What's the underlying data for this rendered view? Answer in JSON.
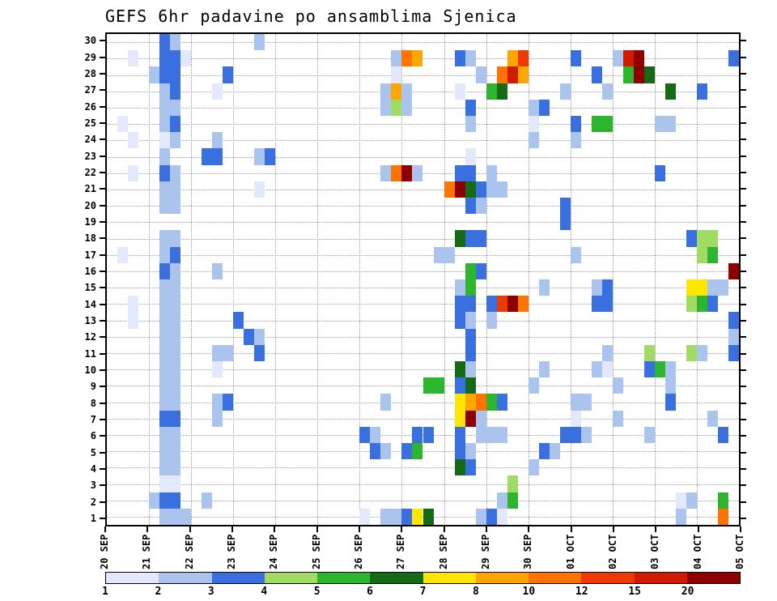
{
  "title": "GEFS 6hr padavine po ansamblima Sjenica",
  "chart_data": {
    "type": "heatmap",
    "title": "GEFS 6hr padavine po ansamblima Sjenica",
    "x_tick_labels": [
      "20 SEP",
      "21 SEP",
      "22 SEP",
      "23 SEP",
      "24 SEP",
      "25 SEP",
      "26 SEP",
      "27 SEP",
      "28 SEP",
      "29 SEP",
      "30 SEP",
      "01 OCT",
      "02 OCT",
      "03 OCT",
      "04 OCT",
      "05 OCT"
    ],
    "x_steps_per_day": 4,
    "n_cols": 60,
    "y_tick_labels": [
      "30",
      "29",
      "28",
      "27",
      "26",
      "25",
      "24",
      "23",
      "22",
      "21",
      "20",
      "19",
      "18",
      "17",
      "16",
      "15",
      "14",
      "13",
      "12",
      "11",
      "10",
      "9",
      "8",
      "7",
      "6",
      "5",
      "4",
      "3",
      "2",
      "1"
    ],
    "y_axis_meaning": "ensemble member",
    "grid": "dotted",
    "colorbar": {
      "labels": [
        "1",
        "2",
        "3",
        "4",
        "5",
        "6",
        "7",
        "8",
        "10",
        "12",
        "15",
        "20"
      ],
      "colors": [
        "#e3e8fa",
        "#aac4ee",
        "#3a6fe0",
        "#a0dc64",
        "#2db52d",
        "#156b15",
        "#ffe600",
        "#ffa500",
        "#ff7300",
        "#ee3900",
        "#d21a00",
        "#8e0000"
      ],
      "level_ranges": [
        "1-2",
        "2-3",
        "3-4",
        "4-5",
        "5-6",
        "6-7",
        "7-8",
        "8-10",
        "10-12",
        "12-15",
        "15-20",
        ">20"
      ]
    },
    "cells_format": "[column_6hr_step_from_20SEP, ensemble_member, color_level_1_to_12]",
    "cells": [
      [
        5,
        30,
        3
      ],
      [
        6,
        30,
        2
      ],
      [
        14,
        30,
        2
      ],
      [
        2,
        29,
        1
      ],
      [
        5,
        29,
        3
      ],
      [
        6,
        29,
        3
      ],
      [
        7,
        29,
        1
      ],
      [
        27,
        29,
        2
      ],
      [
        28,
        29,
        9
      ],
      [
        29,
        29,
        8
      ],
      [
        33,
        29,
        3
      ],
      [
        34,
        29,
        2
      ],
      [
        38,
        29,
        8
      ],
      [
        39,
        29,
        10
      ],
      [
        44,
        29,
        3
      ],
      [
        48,
        29,
        2
      ],
      [
        49,
        29,
        11
      ],
      [
        50,
        29,
        12
      ],
      [
        59,
        29,
        3
      ],
      [
        4,
        28,
        2
      ],
      [
        5,
        28,
        3
      ],
      [
        6,
        28,
        3
      ],
      [
        11,
        28,
        3
      ],
      [
        27,
        28,
        1
      ],
      [
        35,
        28,
        2
      ],
      [
        37,
        28,
        9
      ],
      [
        38,
        28,
        11
      ],
      [
        39,
        28,
        8
      ],
      [
        46,
        28,
        3
      ],
      [
        49,
        28,
        5
      ],
      [
        50,
        28,
        12
      ],
      [
        51,
        28,
        6
      ],
      [
        5,
        27,
        2
      ],
      [
        6,
        27,
        3
      ],
      [
        10,
        27,
        1
      ],
      [
        26,
        27,
        2
      ],
      [
        27,
        27,
        8
      ],
      [
        28,
        27,
        2
      ],
      [
        33,
        27,
        1
      ],
      [
        36,
        27,
        5
      ],
      [
        37,
        27,
        6
      ],
      [
        43,
        27,
        2
      ],
      [
        47,
        27,
        2
      ],
      [
        53,
        27,
        6
      ],
      [
        56,
        27,
        3
      ],
      [
        5,
        26,
        2
      ],
      [
        6,
        26,
        2
      ],
      [
        26,
        26,
        2
      ],
      [
        27,
        26,
        4
      ],
      [
        28,
        26,
        2
      ],
      [
        34,
        26,
        3
      ],
      [
        40,
        26,
        2
      ],
      [
        41,
        26,
        3
      ],
      [
        1,
        25,
        1
      ],
      [
        5,
        25,
        2
      ],
      [
        6,
        25,
        3
      ],
      [
        34,
        25,
        2
      ],
      [
        40,
        25,
        1
      ],
      [
        44,
        25,
        3
      ],
      [
        46,
        25,
        5
      ],
      [
        47,
        25,
        5
      ],
      [
        52,
        25,
        2
      ],
      [
        53,
        25,
        2
      ],
      [
        2,
        24,
        1
      ],
      [
        5,
        24,
        1
      ],
      [
        6,
        24,
        2
      ],
      [
        10,
        24,
        2
      ],
      [
        40,
        24,
        2
      ],
      [
        44,
        24,
        2
      ],
      [
        5,
        23,
        2
      ],
      [
        9,
        23,
        3
      ],
      [
        10,
        23,
        3
      ],
      [
        14,
        23,
        2
      ],
      [
        15,
        23,
        3
      ],
      [
        34,
        23,
        1
      ],
      [
        2,
        22,
        1
      ],
      [
        5,
        22,
        3
      ],
      [
        6,
        22,
        2
      ],
      [
        26,
        22,
        2
      ],
      [
        27,
        22,
        9
      ],
      [
        28,
        22,
        12
      ],
      [
        29,
        22,
        2
      ],
      [
        33,
        22,
        3
      ],
      [
        34,
        22,
        3
      ],
      [
        36,
        22,
        2
      ],
      [
        52,
        22,
        3
      ],
      [
        5,
        21,
        2
      ],
      [
        6,
        21,
        2
      ],
      [
        14,
        21,
        1
      ],
      [
        32,
        21,
        9
      ],
      [
        33,
        21,
        12
      ],
      [
        34,
        21,
        6
      ],
      [
        35,
        21,
        3
      ],
      [
        36,
        21,
        2
      ],
      [
        37,
        21,
        2
      ],
      [
        5,
        20,
        2
      ],
      [
        6,
        20,
        2
      ],
      [
        34,
        20,
        3
      ],
      [
        35,
        20,
        2
      ],
      [
        43,
        20,
        3
      ],
      [
        43,
        19,
        3
      ],
      [
        5,
        18,
        2
      ],
      [
        6,
        18,
        2
      ],
      [
        33,
        18,
        6
      ],
      [
        34,
        18,
        3
      ],
      [
        35,
        18,
        3
      ],
      [
        55,
        18,
        3
      ],
      [
        56,
        18,
        4
      ],
      [
        57,
        18,
        4
      ],
      [
        1,
        17,
        1
      ],
      [
        5,
        17,
        2
      ],
      [
        6,
        17,
        3
      ],
      [
        31,
        17,
        2
      ],
      [
        32,
        17,
        2
      ],
      [
        44,
        17,
        2
      ],
      [
        56,
        17,
        4
      ],
      [
        57,
        17,
        5
      ],
      [
        5,
        16,
        3
      ],
      [
        6,
        16,
        2
      ],
      [
        10,
        16,
        2
      ],
      [
        34,
        16,
        5
      ],
      [
        35,
        16,
        3
      ],
      [
        59,
        16,
        12
      ],
      [
        5,
        15,
        2
      ],
      [
        6,
        15,
        2
      ],
      [
        33,
        15,
        2
      ],
      [
        34,
        15,
        5
      ],
      [
        41,
        15,
        2
      ],
      [
        46,
        15,
        2
      ],
      [
        47,
        15,
        3
      ],
      [
        55,
        15,
        7
      ],
      [
        56,
        15,
        7
      ],
      [
        57,
        15,
        2
      ],
      [
        58,
        15,
        2
      ],
      [
        2,
        14,
        1
      ],
      [
        5,
        14,
        2
      ],
      [
        6,
        14,
        2
      ],
      [
        33,
        14,
        3
      ],
      [
        34,
        14,
        3
      ],
      [
        36,
        14,
        3
      ],
      [
        37,
        14,
        10
      ],
      [
        38,
        14,
        12
      ],
      [
        39,
        14,
        9
      ],
      [
        46,
        14,
        3
      ],
      [
        47,
        14,
        3
      ],
      [
        55,
        14,
        4
      ],
      [
        56,
        14,
        5
      ],
      [
        57,
        14,
        3
      ],
      [
        2,
        13,
        1
      ],
      [
        5,
        13,
        2
      ],
      [
        6,
        13,
        2
      ],
      [
        12,
        13,
        3
      ],
      [
        33,
        13,
        3
      ],
      [
        34,
        13,
        2
      ],
      [
        36,
        13,
        2
      ],
      [
        59,
        13,
        3
      ],
      [
        5,
        12,
        2
      ],
      [
        6,
        12,
        2
      ],
      [
        13,
        12,
        3
      ],
      [
        14,
        12,
        2
      ],
      [
        34,
        12,
        3
      ],
      [
        59,
        12,
        2
      ],
      [
        5,
        11,
        2
      ],
      [
        6,
        11,
        2
      ],
      [
        10,
        11,
        2
      ],
      [
        11,
        11,
        2
      ],
      [
        14,
        11,
        3
      ],
      [
        34,
        11,
        3
      ],
      [
        47,
        11,
        2
      ],
      [
        51,
        11,
        4
      ],
      [
        55,
        11,
        4
      ],
      [
        56,
        11,
        2
      ],
      [
        59,
        11,
        3
      ],
      [
        5,
        10,
        2
      ],
      [
        6,
        10,
        2
      ],
      [
        10,
        10,
        1
      ],
      [
        33,
        10,
        6
      ],
      [
        34,
        10,
        2
      ],
      [
        41,
        10,
        2
      ],
      [
        46,
        10,
        2
      ],
      [
        47,
        10,
        1
      ],
      [
        51,
        10,
        3
      ],
      [
        52,
        10,
        5
      ],
      [
        53,
        10,
        2
      ],
      [
        5,
        9,
        2
      ],
      [
        6,
        9,
        2
      ],
      [
        30,
        9,
        5
      ],
      [
        31,
        9,
        5
      ],
      [
        33,
        9,
        3
      ],
      [
        34,
        9,
        6
      ],
      [
        40,
        9,
        2
      ],
      [
        48,
        9,
        2
      ],
      [
        53,
        9,
        2
      ],
      [
        5,
        8,
        2
      ],
      [
        6,
        8,
        2
      ],
      [
        10,
        8,
        2
      ],
      [
        11,
        8,
        3
      ],
      [
        26,
        8,
        2
      ],
      [
        33,
        8,
        7
      ],
      [
        34,
        8,
        8
      ],
      [
        35,
        8,
        9
      ],
      [
        36,
        8,
        5
      ],
      [
        37,
        8,
        3
      ],
      [
        44,
        8,
        2
      ],
      [
        45,
        8,
        2
      ],
      [
        53,
        8,
        3
      ],
      [
        5,
        7,
        3
      ],
      [
        6,
        7,
        3
      ],
      [
        10,
        7,
        2
      ],
      [
        33,
        7,
        7
      ],
      [
        34,
        7,
        12
      ],
      [
        35,
        7,
        2
      ],
      [
        44,
        7,
        1
      ],
      [
        48,
        7,
        2
      ],
      [
        57,
        7,
        2
      ],
      [
        5,
        6,
        2
      ],
      [
        6,
        6,
        2
      ],
      [
        24,
        6,
        3
      ],
      [
        25,
        6,
        2
      ],
      [
        29,
        6,
        3
      ],
      [
        30,
        6,
        3
      ],
      [
        33,
        6,
        3
      ],
      [
        35,
        6,
        2
      ],
      [
        36,
        6,
        2
      ],
      [
        37,
        6,
        2
      ],
      [
        43,
        6,
        3
      ],
      [
        44,
        6,
        3
      ],
      [
        45,
        6,
        2
      ],
      [
        51,
        6,
        2
      ],
      [
        58,
        6,
        3
      ],
      [
        5,
        5,
        2
      ],
      [
        6,
        5,
        2
      ],
      [
        25,
        5,
        3
      ],
      [
        26,
        5,
        2
      ],
      [
        28,
        5,
        3
      ],
      [
        29,
        5,
        5
      ],
      [
        33,
        5,
        3
      ],
      [
        34,
        5,
        2
      ],
      [
        41,
        5,
        3
      ],
      [
        42,
        5,
        2
      ],
      [
        5,
        4,
        2
      ],
      [
        6,
        4,
        2
      ],
      [
        33,
        4,
        6
      ],
      [
        34,
        4,
        3
      ],
      [
        40,
        4,
        2
      ],
      [
        5,
        3,
        1
      ],
      [
        6,
        3,
        1
      ],
      [
        38,
        3,
        4
      ],
      [
        4,
        2,
        2
      ],
      [
        5,
        2,
        3
      ],
      [
        6,
        2,
        3
      ],
      [
        9,
        2,
        2
      ],
      [
        37,
        2,
        2
      ],
      [
        38,
        2,
        5
      ],
      [
        54,
        2,
        1
      ],
      [
        55,
        2,
        2
      ],
      [
        58,
        2,
        5
      ],
      [
        5,
        1,
        2
      ],
      [
        6,
        1,
        2
      ],
      [
        7,
        1,
        2
      ],
      [
        24,
        1,
        1
      ],
      [
        26,
        1,
        2
      ],
      [
        27,
        1,
        2
      ],
      [
        28,
        1,
        3
      ],
      [
        29,
        1,
        7
      ],
      [
        30,
        1,
        6
      ],
      [
        35,
        1,
        2
      ],
      [
        36,
        1,
        3
      ],
      [
        37,
        1,
        1
      ],
      [
        54,
        1,
        2
      ],
      [
        58,
        1,
        9
      ]
    ]
  },
  "colors": {
    "background": "#ffffff",
    "frame": "#000000",
    "grid": "#9a9a9a"
  }
}
